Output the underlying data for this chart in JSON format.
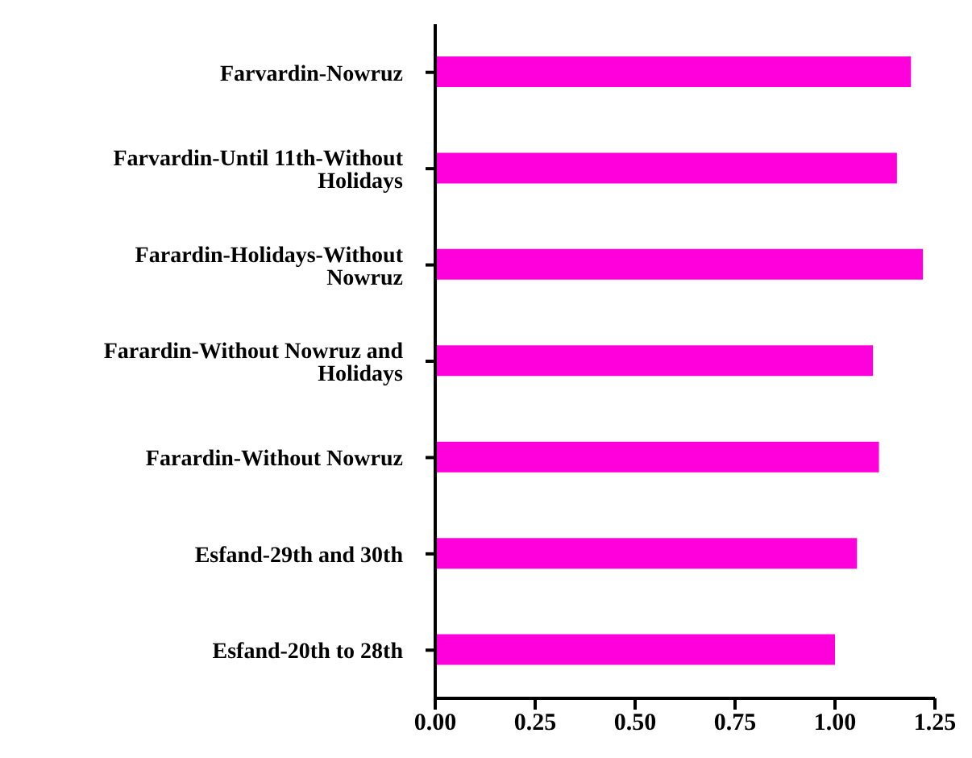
{
  "chart_data": {
    "type": "bar",
    "orientation": "horizontal",
    "categories": [
      "Farvardin-Nowruz",
      "Farvardin-Until 11th-Without Holidays",
      "Farardin-Holidays-Without Nowruz",
      "Farardin-Without Nowruz and Holidays",
      "Farardin-Without Nowruz",
      "Esfand-29th and 30th",
      "Esfand-20th to 28th"
    ],
    "values": [
      1.19,
      1.155,
      1.22,
      1.095,
      1.11,
      1.055,
      1.0
    ],
    "color": "#ff00dd",
    "xlim": [
      0,
      1.25
    ],
    "xticks": [
      {
        "value": 0,
        "label": "0.00"
      },
      {
        "value": 0.25,
        "label": "0.25"
      },
      {
        "value": 0.5,
        "label": "0.50"
      },
      {
        "value": 0.75,
        "label": "0.75"
      },
      {
        "value": 1,
        "label": "1.00"
      },
      {
        "value": 1.25,
        "label": "1.25"
      }
    ],
    "grid": false,
    "legend": false
  }
}
